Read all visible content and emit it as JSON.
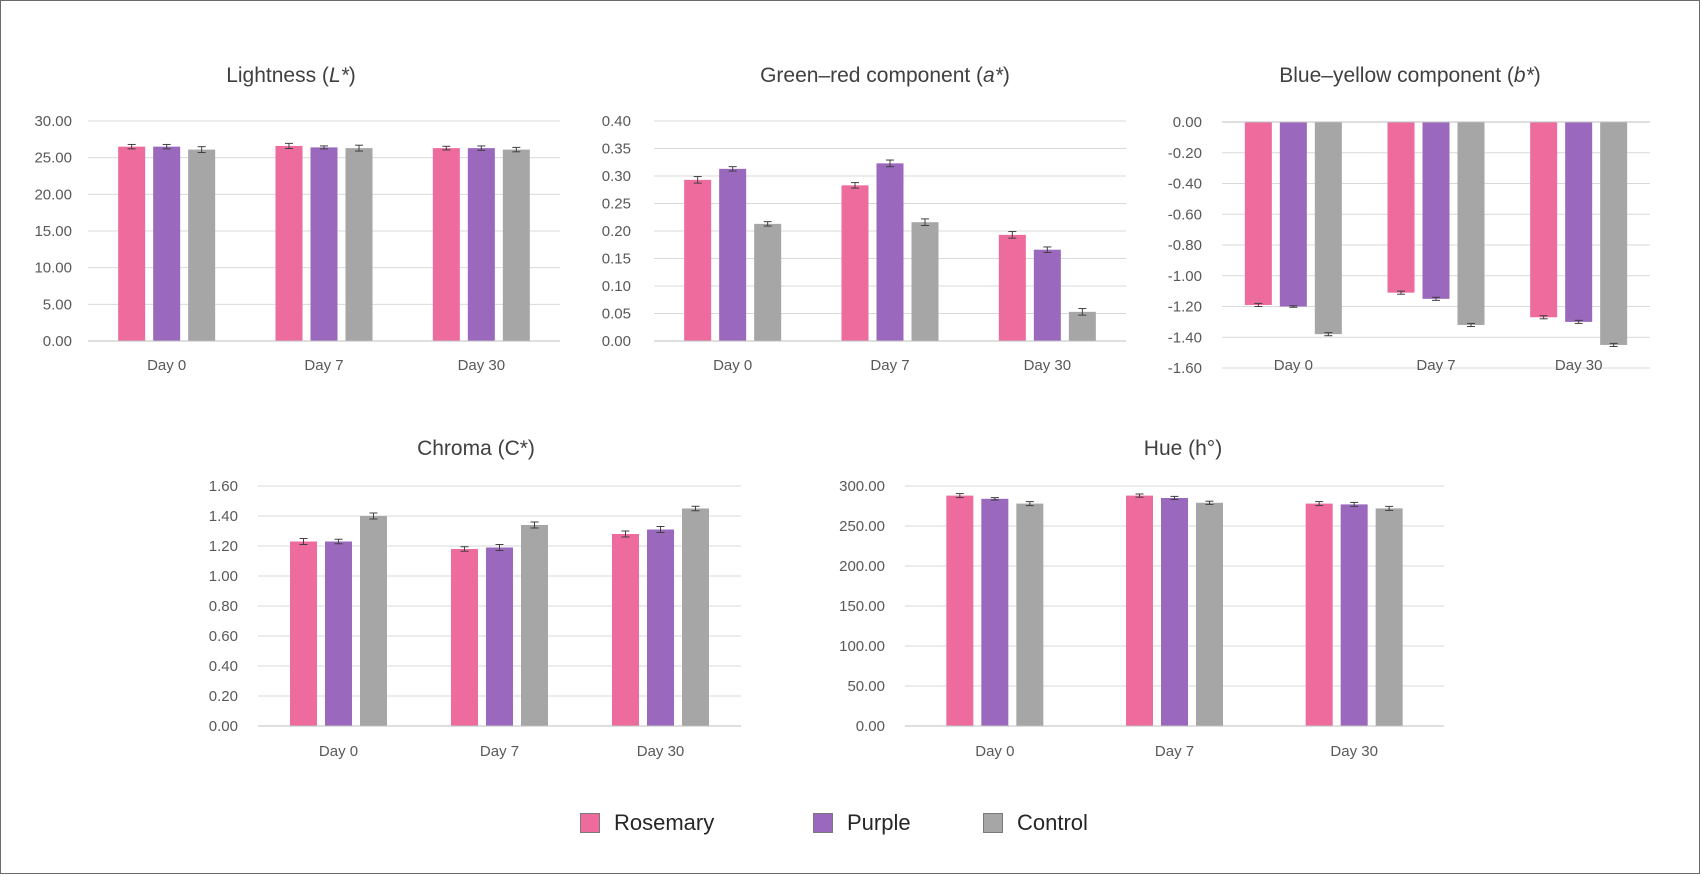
{
  "colors": {
    "Rosemary": "#ee6b9e",
    "Purple": "#9a69bd",
    "Control": "#a6a6a6"
  },
  "legend": [
    {
      "name": "Rosemary",
      "color": "#ee6b9e"
    },
    {
      "name": "Purple",
      "color": "#9a69bd"
    },
    {
      "name": "Control",
      "color": "#a6a6a6"
    }
  ],
  "chart_data": [
    {
      "type": "bar",
      "title": "Lightness (L*)",
      "title_parts": [
        "Lightness (",
        "L*",
        ")"
      ],
      "categories": [
        "Day 0",
        "Day 7",
        "Day 30"
      ],
      "ylim": [
        0,
        30
      ],
      "yticks": [
        "0.00",
        "5.00",
        "10.00",
        "15.00",
        "20.00",
        "25.00",
        "30.00"
      ],
      "grid": true,
      "series": [
        {
          "name": "Rosemary",
          "values": [
            26.5,
            26.6,
            26.3
          ],
          "errors": [
            0.3,
            0.35,
            0.25
          ]
        },
        {
          "name": "Purple",
          "values": [
            26.5,
            26.4,
            26.3
          ],
          "errors": [
            0.3,
            0.2,
            0.3
          ]
        },
        {
          "name": "Control",
          "values": [
            26.1,
            26.3,
            26.1
          ],
          "errors": [
            0.4,
            0.4,
            0.3
          ]
        }
      ]
    },
    {
      "type": "bar",
      "title": "Green–red component (a*)",
      "title_parts": [
        "Green–red component (",
        "a*",
        ")"
      ],
      "categories": [
        "Day 0",
        "Day 7",
        "Day 30"
      ],
      "ylim": [
        0,
        0.4
      ],
      "yticks": [
        "0.00",
        "0.05",
        "0.10",
        "0.15",
        "0.20",
        "0.25",
        "0.30",
        "0.35",
        "0.40"
      ],
      "grid": true,
      "series": [
        {
          "name": "Rosemary",
          "values": [
            0.293,
            0.283,
            0.193
          ],
          "errors": [
            0.006,
            0.005,
            0.006
          ]
        },
        {
          "name": "Purple",
          "values": [
            0.313,
            0.323,
            0.166
          ],
          "errors": [
            0.004,
            0.006,
            0.005
          ]
        },
        {
          "name": "Control",
          "values": [
            0.213,
            0.216,
            0.053
          ],
          "errors": [
            0.004,
            0.006,
            0.006
          ]
        }
      ]
    },
    {
      "type": "bar",
      "title": "Blue–yellow component (b*)",
      "title_parts": [
        "Blue–yellow component (",
        "b*",
        ")"
      ],
      "categories": [
        "Day 0",
        "Day 7",
        "Day 30"
      ],
      "ylim": [
        -1.6,
        0
      ],
      "yticks": [
        "-1.60",
        "-1.40",
        "-1.20",
        "-1.00",
        "-0.80",
        "-0.60",
        "-0.40",
        "-0.20",
        "0.00"
      ],
      "grid": true,
      "series": [
        {
          "name": "Rosemary",
          "values": [
            -1.19,
            -1.11,
            -1.27
          ],
          "errors": [
            0.01,
            0.01,
            0.01
          ]
        },
        {
          "name": "Purple",
          "values": [
            -1.2,
            -1.15,
            -1.3
          ],
          "errors": [
            0.005,
            0.01,
            0.01
          ]
        },
        {
          "name": "Control",
          "values": [
            -1.38,
            -1.32,
            -1.45
          ],
          "errors": [
            0.01,
            0.01,
            0.01
          ]
        }
      ]
    },
    {
      "type": "bar",
      "title": "Chroma (C*)",
      "title_parts": [
        "Chroma (C*)"
      ],
      "categories": [
        "Day 0",
        "Day 7",
        "Day 30"
      ],
      "ylim": [
        0,
        1.6
      ],
      "yticks": [
        "0.00",
        "0.20",
        "0.40",
        "0.60",
        "0.80",
        "1.00",
        "1.20",
        "1.40",
        "1.60"
      ],
      "grid": true,
      "series": [
        {
          "name": "Rosemary",
          "values": [
            1.23,
            1.18,
            1.28
          ],
          "errors": [
            0.02,
            0.015,
            0.02
          ]
        },
        {
          "name": "Purple",
          "values": [
            1.23,
            1.19,
            1.31
          ],
          "errors": [
            0.015,
            0.02,
            0.02
          ]
        },
        {
          "name": "Control",
          "values": [
            1.4,
            1.34,
            1.45
          ],
          "errors": [
            0.02,
            0.02,
            0.015
          ]
        }
      ]
    },
    {
      "type": "bar",
      "title": "Hue (h°)",
      "title_parts": [
        "Hue (h°)"
      ],
      "categories": [
        "Day 0",
        "Day 7",
        "Day 30"
      ],
      "ylim": [
        0,
        300
      ],
      "yticks": [
        "0.00",
        "50.00",
        "100.00",
        "150.00",
        "200.00",
        "250.00",
        "300.00"
      ],
      "grid": true,
      "series": [
        {
          "name": "Rosemary",
          "values": [
            288,
            288,
            278
          ],
          "errors": [
            2.5,
            2,
            2.5
          ]
        },
        {
          "name": "Purple",
          "values": [
            284,
            285,
            277
          ],
          "errors": [
            1.5,
            2,
            2.5
          ]
        },
        {
          "name": "Control",
          "values": [
            278,
            279,
            272
          ],
          "errors": [
            2.5,
            2,
            2.5
          ]
        }
      ]
    }
  ]
}
